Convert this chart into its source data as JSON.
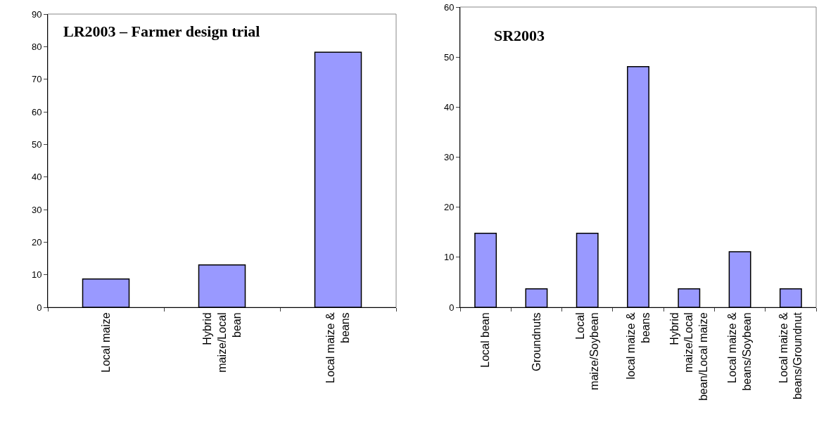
{
  "chart_data": [
    {
      "type": "bar",
      "title": "LR2003 – Farmer design trial",
      "categories": [
        "Local maize",
        "Hybrid maize/Local bean",
        "Local maize & beans"
      ],
      "values": [
        8.7,
        13.0,
        78.3
      ],
      "color": "#9999ff",
      "ylim": [
        0,
        90
      ],
      "yticks": [
        0,
        10,
        20,
        30,
        40,
        50,
        60,
        70,
        80,
        90
      ],
      "grid": false
    },
    {
      "type": "bar",
      "title": "SR2003",
      "categories": [
        "Local bean",
        "Groundnuts",
        "Local maize/Soybean",
        "local maize & beans",
        "Hybrid maize/Local bean/Local maize",
        "Local maize & beans/Soybean",
        "Local maize & beans/Groundnut"
      ],
      "values": [
        14.8,
        3.7,
        14.8,
        48.1,
        3.7,
        11.1,
        3.7
      ],
      "color": "#9999ff",
      "ylim": [
        0,
        60
      ],
      "yticks": [
        0,
        10,
        20,
        30,
        40,
        50,
        60
      ],
      "grid": false
    }
  ]
}
